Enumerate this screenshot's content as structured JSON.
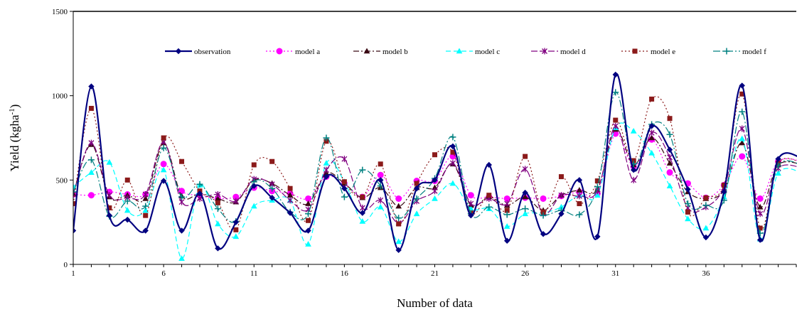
{
  "chart_data": {
    "type": "line",
    "title": "",
    "xlabel": "Number of data",
    "ylabel": "Yield (kgha",
    "ylabel_sup": "-1",
    "ylabel_close": ")",
    "xlim": [
      1,
      41
    ],
    "ylim": [
      0,
      1500
    ],
    "yticks": [
      0,
      500,
      1000,
      1500
    ],
    "xticks": [
      1,
      6,
      11,
      16,
      21,
      26,
      31,
      36
    ],
    "grid": false,
    "legend_position": "top",
    "x": [
      1,
      2,
      3,
      4,
      5,
      6,
      7,
      8,
      9,
      10,
      11,
      12,
      13,
      14,
      15,
      16,
      17,
      18,
      19,
      20,
      21,
      22,
      23,
      24,
      25,
      26,
      27,
      28,
      29,
      30,
      31,
      32,
      33,
      34,
      35,
      36,
      37,
      38,
      39,
      40,
      41
    ],
    "series": [
      {
        "name": "observation",
        "color": "#000080",
        "marker": "diamond",
        "dash": "solid",
        "width": 2.2,
        "values": [
          200,
          1055,
          290,
          265,
          200,
          495,
          200,
          420,
          95,
          250,
          465,
          395,
          305,
          200,
          520,
          450,
          305,
          500,
          85,
          450,
          500,
          700,
          290,
          590,
          140,
          425,
          180,
          300,
          500,
          165,
          1125,
          560,
          820,
          680,
          445,
          160,
          430,
          1060,
          145,
          625,
          null
        ]
      },
      {
        "name": "model a",
        "color": "#ff00ff",
        "marker": "circle",
        "dash": "2,3",
        "width": 1.2,
        "values": [
          415,
          410,
          430,
          415,
          415,
          595,
          435,
          410,
          390,
          400,
          455,
          435,
          420,
          390,
          520,
          480,
          400,
          530,
          390,
          495,
          495,
          640,
          410,
          400,
          390,
          395,
          390,
          405,
          430,
          420,
          775,
          580,
          740,
          545,
          480,
          395,
          470,
          640,
          390,
          610,
          null
        ]
      },
      {
        "name": "model b",
        "color": "#3a0a14",
        "marker": "triangle",
        "dash": "8,3,2,3",
        "width": 1.2,
        "values": [
          420,
          710,
          400,
          410,
          390,
          720,
          405,
          420,
          390,
          370,
          500,
          480,
          410,
          360,
          540,
          480,
          395,
          455,
          345,
          455,
          455,
          595,
          350,
          400,
          350,
          400,
          320,
          410,
          440,
          445,
          800,
          590,
          750,
          600,
          430,
          390,
          440,
          720,
          340,
          590,
          null
        ]
      },
      {
        "name": "model c",
        "color": "#00ffff",
        "marker": "triangle",
        "dash": "7,4",
        "width": 1.2,
        "values": [
          460,
          545,
          605,
          320,
          320,
          560,
          35,
          470,
          240,
          165,
          345,
          380,
          380,
          120,
          600,
          490,
          255,
          340,
          135,
          300,
          390,
          480,
          330,
          330,
          225,
          300,
          305,
          340,
          410,
          410,
          810,
          790,
          660,
          465,
          270,
          215,
          400,
          745,
          150,
          540,
          null
        ]
      },
      {
        "name": "model d",
        "color": "#800080",
        "marker": "star",
        "dash": "9,3",
        "width": 1.2,
        "values": [
          415,
          720,
          410,
          395,
          415,
          725,
          370,
          390,
          415,
          375,
          505,
          475,
          380,
          325,
          560,
          625,
          335,
          380,
          245,
          375,
          435,
          600,
          360,
          390,
          360,
          565,
          300,
          410,
          405,
          435,
          820,
          500,
          780,
          635,
          335,
          340,
          455,
          805,
          300,
          570,
          null
        ]
      },
      {
        "name": "model e",
        "color": "#8b1a1a",
        "marker": "square",
        "dash": "2,3",
        "width": 1.2,
        "values": [
          360,
          925,
          335,
          500,
          290,
          750,
          610,
          435,
          365,
          205,
          590,
          610,
          450,
          260,
          730,
          490,
          400,
          595,
          240,
          480,
          650,
          665,
          305,
          410,
          320,
          640,
          310,
          520,
          360,
          495,
          855,
          615,
          980,
          865,
          310,
          395,
          470,
          1010,
          215,
          600,
          null
        ]
      },
      {
        "name": "model f",
        "color": "#008080",
        "marker": "plus",
        "dash": "10,3,2,3",
        "width": 1.2,
        "values": [
          430,
          620,
          285,
          375,
          345,
          690,
          400,
          475,
          330,
          255,
          490,
          450,
          310,
          300,
          750,
          400,
          560,
          465,
          275,
          390,
          510,
          755,
          300,
          340,
          295,
          330,
          290,
          320,
          295,
          460,
          1020,
          595,
          830,
          770,
          360,
          350,
          380,
          905,
          185,
          585,
          null
        ]
      }
    ]
  }
}
